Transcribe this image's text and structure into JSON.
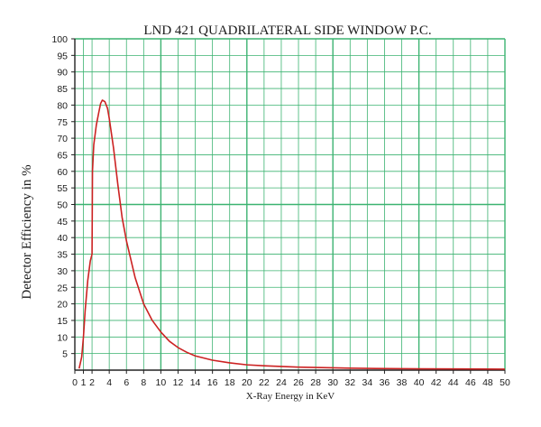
{
  "chart_data": {
    "type": "line",
    "title": "LND 421 QUADRILATERAL SIDE WINDOW P.C.",
    "xlabel": "X-Ray Energy in KeV",
    "ylabel": "Detector Efficiency in %",
    "xlim": [
      0,
      50
    ],
    "ylim": [
      0,
      100
    ],
    "x_ticks": [
      "0",
      "1",
      "2",
      "4",
      "6",
      "8",
      "10",
      "12",
      "14",
      "16",
      "18",
      "20",
      "22",
      "24",
      "26",
      "28",
      "30",
      "32",
      "34",
      "36",
      "38",
      "40",
      "42",
      "44",
      "46",
      "48",
      "50"
    ],
    "y_ticks": [
      "5",
      "10",
      "15",
      "20",
      "25",
      "30",
      "35",
      "40",
      "45",
      "50",
      "55",
      "60",
      "65",
      "70",
      "75",
      "80",
      "85",
      "90",
      "95",
      "100"
    ],
    "grid": true,
    "colors": {
      "grid": "#3cb371",
      "line": "#cc2222",
      "axis": "#222222"
    },
    "series": [
      {
        "name": "",
        "x": [
          0.5,
          0.8,
          1.0,
          1.2,
          1.5,
          1.8,
          2.0,
          2.05,
          2.2,
          2.5,
          2.8,
          3.0,
          3.2,
          3.5,
          3.8,
          4.0,
          4.5,
          5.0,
          5.5,
          6.0,
          7.0,
          8.0,
          9.0,
          10.0,
          11.0,
          12.0,
          13.0,
          14.0,
          16.0,
          18.0,
          20.0,
          22.0,
          24.0,
          26.0,
          28.0,
          30.0,
          32.0,
          35.0,
          40.0,
          45.0,
          50.0
        ],
        "y": [
          0.5,
          4,
          10,
          18,
          27,
          33,
          35,
          60,
          68,
          74,
          78,
          80.5,
          81.5,
          81,
          79,
          76,
          67,
          56,
          46,
          39,
          28,
          20,
          15,
          11.5,
          8.7,
          6.8,
          5.4,
          4.3,
          3.0,
          2.2,
          1.6,
          1.3,
          1.1,
          0.9,
          0.8,
          0.7,
          0.6,
          0.5,
          0.4,
          0.35,
          0.3
        ]
      }
    ]
  }
}
